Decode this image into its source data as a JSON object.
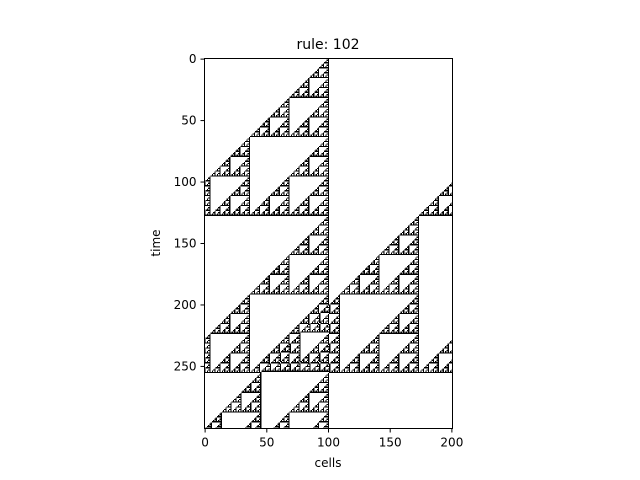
{
  "chart_data": {
    "type": "heatmap",
    "title": "rule: 102",
    "xlabel": "cells",
    "ylabel": "time",
    "rule": 102,
    "cells": 201,
    "steps": 301,
    "initial_cell": 100,
    "xlim": [
      0,
      200
    ],
    "ylim": [
      300,
      0
    ],
    "x_ticks": [
      0,
      50,
      100,
      150,
      200
    ],
    "y_ticks": [
      0,
      50,
      100,
      150,
      200,
      250
    ],
    "colormap": [
      "#ffffff",
      "#000000"
    ],
    "grid": false
  }
}
